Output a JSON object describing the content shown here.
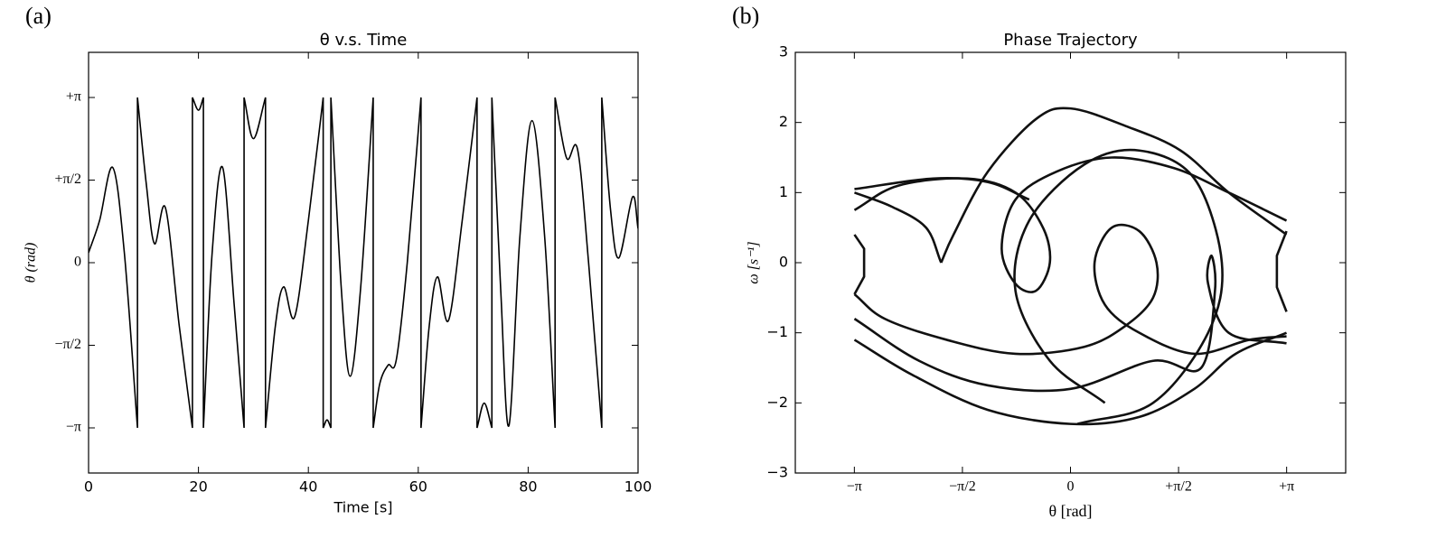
{
  "chart_data": [
    {
      "type": "line",
      "panel_label": "(a)",
      "title": "θ v.s. Time",
      "xlabel": "Time [s]",
      "ylabel": "θ  (rad)",
      "xlim": [
        0,
        100
      ],
      "xticks": [
        0,
        20,
        40,
        60,
        80,
        100
      ],
      "ylim": [
        -4,
        4
      ],
      "yticks": [
        {
          "value": -3.1416,
          "label": "−π"
        },
        {
          "value": -1.5708,
          "label": "−π/2"
        },
        0,
        {
          "value": 1.5708,
          "label": "+π/2"
        },
        {
          "value": 3.1416,
          "label": "+π"
        }
      ],
      "series": [
        {
          "color": "#000000",
          "x": [
            0,
            2,
            4.4,
            6.5,
            8.9,
            8.9,
            10.5,
            12,
            14,
            16.5,
            18.9,
            18.9,
            20,
            20.9,
            20.9,
            22.5,
            24.4,
            26.5,
            28.3,
            28.3,
            30,
            32.2,
            32.2,
            34,
            35.5,
            37.5,
            40,
            42.7,
            42.7,
            43.4,
            44.1,
            44.1,
            46,
            47.6,
            49.5,
            51.8,
            51.8,
            53,
            54.5,
            56,
            58,
            60.5,
            60.5,
            62,
            63.5,
            65.5,
            68,
            70.7,
            70.7,
            72,
            73.4,
            73.4,
            75,
            76.5,
            78.5,
            80.7,
            83,
            84.9,
            84.9,
            87,
            89,
            91,
            93.4,
            93.4,
            95,
            96.5,
            99,
            100
          ],
          "values": [
            0.19,
            0.8,
            1.81,
            0.2,
            -3.1416,
            3.1416,
            1.5,
            0.36,
            1.04,
            -1.2,
            -3.1416,
            3.1416,
            2.9,
            3.1416,
            -3.1416,
            0.2,
            1.81,
            -0.8,
            -3.1416,
            3.1416,
            2.36,
            3.1416,
            -3.1416,
            -1.2,
            -0.46,
            -1.03,
            0.8,
            3.1416,
            -3.1416,
            -2.99,
            -3.1416,
            3.1416,
            -0.5,
            -2.16,
            -0.5,
            3.1416,
            -3.1416,
            -2.3,
            -1.95,
            -1.85,
            0,
            3.1416,
            -3.1416,
            -1.2,
            -0.27,
            -1.1,
            0.8,
            3.1416,
            -3.1416,
            -2.67,
            -3.1416,
            3.1416,
            -0.5,
            -3.1,
            0.5,
            2.7,
            0.5,
            -3.1416,
            3.1416,
            1.99,
            2.15,
            0,
            -3.1416,
            3.1416,
            1.0,
            0.09,
            1.25,
            0.65
          ]
        }
      ]
    },
    {
      "type": "line",
      "panel_label": "(b)",
      "title": "Phase Trajectory",
      "xlabel": "θ [rad]",
      "ylabel": "ω [s⁻¹]",
      "xlim": [
        -4,
        4
      ],
      "xticks": [
        {
          "value": -3.1416,
          "label": "−π"
        },
        {
          "value": -1.5708,
          "label": "−π/2"
        },
        0,
        {
          "value": 1.5708,
          "label": "+π/2"
        },
        {
          "value": 3.1416,
          "label": "+π"
        }
      ],
      "ylim": [
        -3,
        3
      ],
      "yticks": [
        {
          "value": -3,
          "label": "−3"
        },
        {
          "value": -2,
          "label": "−2"
        },
        {
          "value": -1,
          "label": "−1"
        },
        0,
        1,
        2,
        3
      ],
      "series": [
        {
          "color": "#111111",
          "x": [
            -3.14,
            -2.5,
            -1.5,
            -0.8,
            -0.4,
            -0.3,
            -0.5,
            -0.8,
            -1.0,
            -0.8,
            -0.2,
            0.6,
            1.5,
            2.3,
            3.14,
            null,
            -3.14,
            -2.7,
            -1.8,
            -0.8,
            0.2,
            0.8,
            1.2,
            1.25,
            1.0,
            0.6,
            0.35,
            0.5,
            1.0,
            1.8,
            2.6,
            3.14,
            null,
            -3.14,
            -2.2,
            -1.2,
            0,
            1.2,
            1.9,
            2.1,
            2.05,
            2.0,
            2.3,
            3.14,
            null,
            -1.88,
            -1.7,
            -1.2,
            -0.5,
            0,
            0.8,
            1.6,
            2.3,
            3.14,
            null,
            -3.14,
            -2.0,
            -1.2,
            -0.6,
            null,
            -3.14,
            -2.3,
            -1.2,
            0,
            1.0,
            1.8,
            2.4,
            3.14,
            null,
            -3.14,
            -3.0,
            -3.0,
            -3.14,
            null,
            3.14,
            3.0,
            3.0,
            3.14,
            null,
            0.1,
            1.2,
            2.0,
            2.2,
            1.8,
            1.0,
            0.2,
            -0.6,
            -0.8,
            -0.3,
            0.5,
            null,
            -1.88,
            -2.1,
            -2.6,
            -3.14
          ],
          "values": [
            0.75,
            1.1,
            1.2,
            1.0,
            0.5,
            0,
            -0.4,
            -0.3,
            0.2,
            0.9,
            1.3,
            1.5,
            1.35,
            1.0,
            0.6,
            null,
            -0.45,
            -0.8,
            -1.1,
            -1.3,
            -1.2,
            -0.9,
            -0.5,
            0,
            0.45,
            0.5,
            0,
            -0.6,
            -1.0,
            -1.3,
            -1.1,
            -1.05,
            null,
            -0.8,
            -1.4,
            -1.75,
            -1.8,
            -1.4,
            -1.5,
            -0.4,
            0.1,
            -0.3,
            -1.0,
            -1.15,
            null,
            0,
            0.4,
            1.3,
            2.05,
            2.2,
            1.95,
            1.6,
            1.0,
            0.4,
            null,
            1.05,
            1.2,
            1.15,
            0.9,
            null,
            -1.1,
            -1.6,
            -2.1,
            -2.3,
            -2.2,
            -1.8,
            -1.3,
            -1.0,
            null,
            0.4,
            0.2,
            -0.2,
            -0.45,
            null,
            0.45,
            0.1,
            -0.35,
            -0.7,
            null,
            -2.3,
            -2.0,
            -1.0,
            0,
            1.2,
            1.6,
            1.4,
            0.6,
            -0.4,
            -1.4,
            -2.0,
            null,
            0,
            0.5,
            0.8,
            1.0
          ]
        }
      ]
    }
  ]
}
